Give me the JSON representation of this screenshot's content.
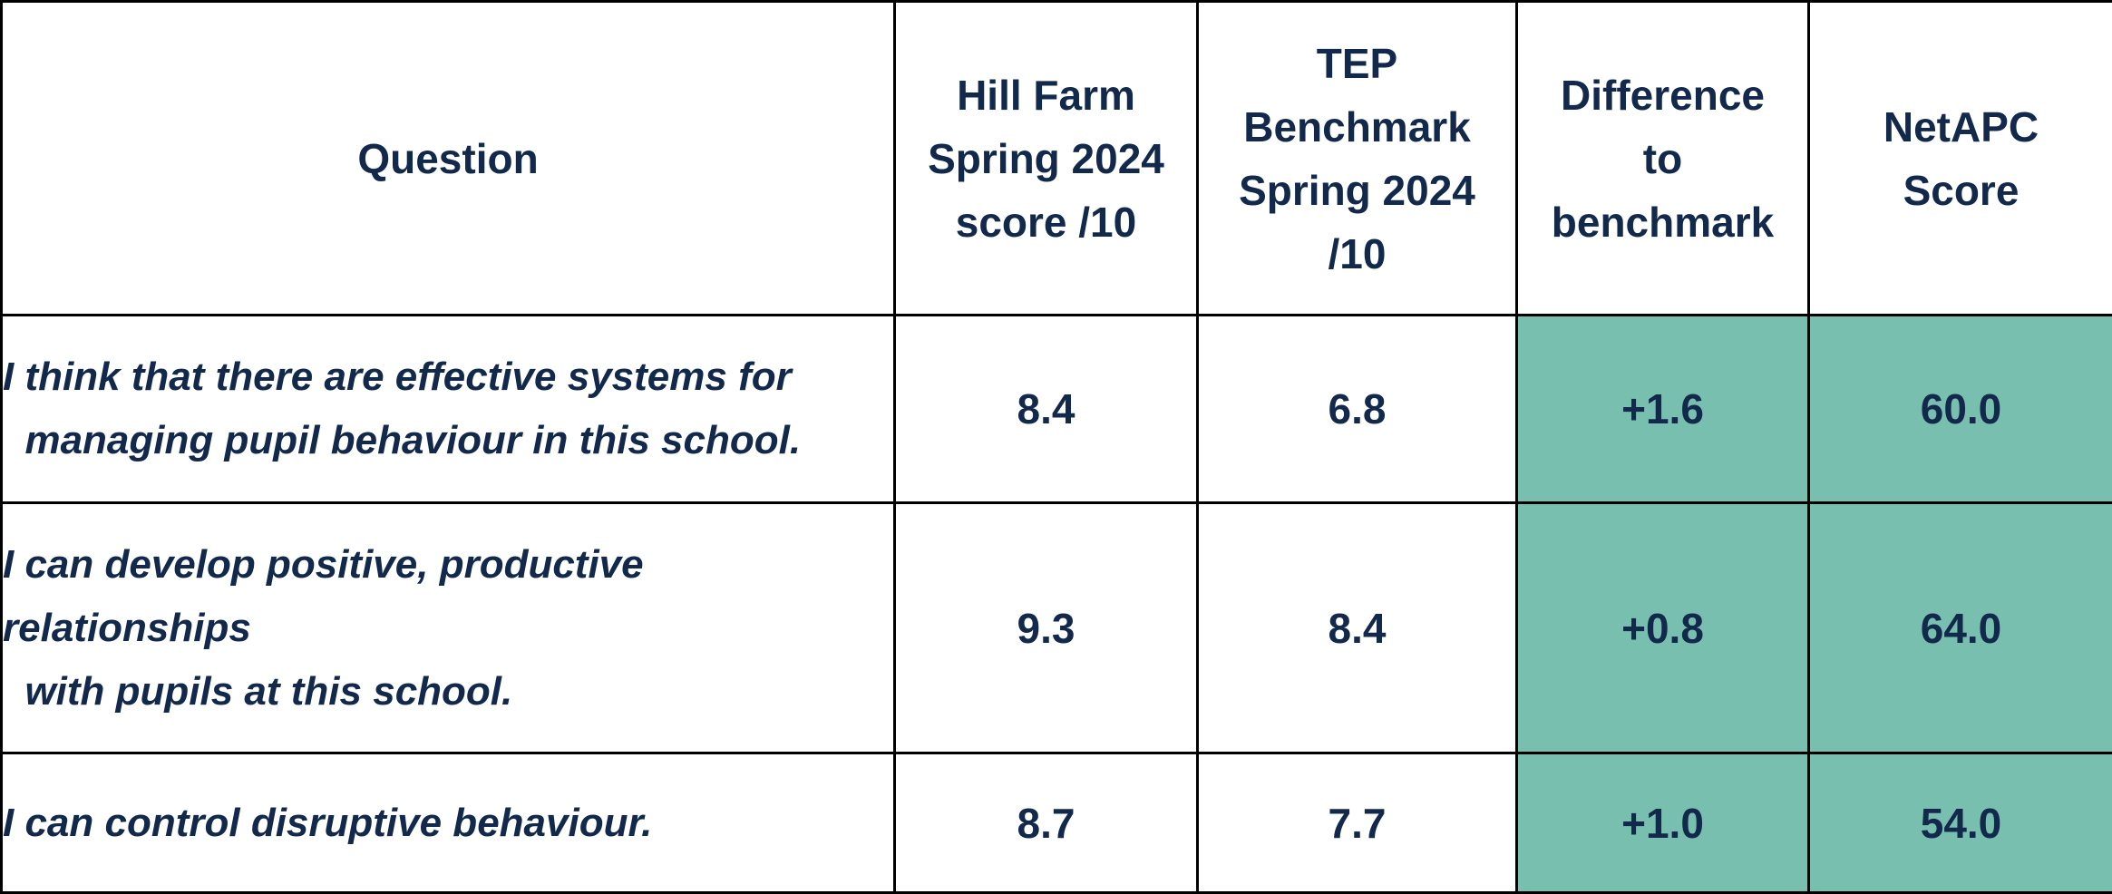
{
  "colors": {
    "text": "#13294b",
    "highlight_cell": "#79bfb0",
    "border": "#000000"
  },
  "table": {
    "headers": [
      [
        "Question"
      ],
      [
        "Hill Farm",
        "Spring 2024",
        "score /10"
      ],
      [
        "TEP",
        "Benchmark",
        "Spring 2024",
        "/10"
      ],
      [
        "Difference",
        "to",
        "benchmark"
      ],
      [
        "NetAPC",
        "Score"
      ]
    ],
    "rows": [
      {
        "question_lines": [
          "I think that there are effective systems for",
          "  managing pupil behaviour in this school."
        ],
        "hill_farm_score": "8.4",
        "tep_benchmark": "6.8",
        "difference": "+1.6",
        "netapc_score": "60.0"
      },
      {
        "question_lines": [
          "I can develop positive, productive",
          "relationships",
          "  with pupils at this school."
        ],
        "hill_farm_score": "9.3",
        "tep_benchmark": "8.4",
        "difference": "+0.8",
        "netapc_score": "64.0"
      },
      {
        "question_lines": [
          "I can control disruptive behaviour."
        ],
        "hill_farm_score": "8.7",
        "tep_benchmark": "7.7",
        "difference": "+1.0",
        "netapc_score": "54.0"
      }
    ]
  }
}
